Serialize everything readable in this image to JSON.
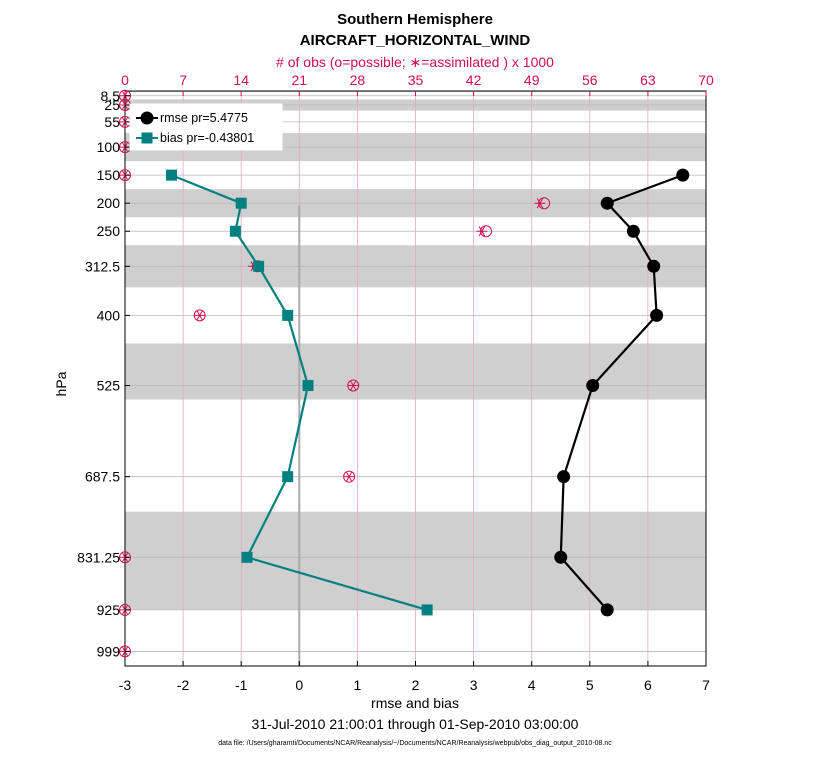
{
  "chart_data": {
    "type": "line",
    "title_line1": "Southern Hemisphere",
    "title_line2": "AIRCRAFT_HORIZONTAL_WIND",
    "top_axis_label": "# of obs (o=possible; ∗=assimilated ) x 1000",
    "xlabel": "rmse and bias",
    "ylabel": "hPa",
    "date_range": "31-Jul-2010 21:00:01 through 01-Sep-2010 03:00:00",
    "footnote": "data file: /Users/gharamti/Documents/NCAR/Reanalysis/~/Documents/NCAR/Reanalysis/webpub/obs_diag_output_2010-08.nc",
    "xlim": [
      -3,
      7
    ],
    "x_ticks": [
      "-3",
      "-2",
      "-1",
      "0",
      "1",
      "2",
      "3",
      "4",
      "5",
      "6",
      "7"
    ],
    "top_xlim": [
      0,
      70
    ],
    "top_ticks": [
      "0",
      "7",
      "14",
      "21",
      "28",
      "35",
      "42",
      "49",
      "56",
      "63",
      "70"
    ],
    "ylim": [
      0,
      1025
    ],
    "y_levels": [
      8.5,
      25,
      55,
      100,
      150,
      200,
      250,
      312.5,
      400,
      525,
      687.5,
      831.25,
      925,
      999
    ],
    "y_tick_labels": [
      "8.5",
      "25",
      "55",
      "100",
      "150",
      "200",
      "250",
      "312.5",
      "400",
      "525",
      "687.5",
      "831.25",
      "925",
      "999"
    ],
    "shaded_bands": [
      [
        0,
        2
      ],
      [
        15,
        35
      ],
      [
        75,
        125
      ],
      [
        175,
        225
      ],
      [
        275,
        350
      ],
      [
        450,
        550
      ],
      [
        750,
        925
      ],
      [
        1075,
        1125
      ],
      [
        1150,
        1225
      ]
    ],
    "legend": [
      {
        "label": "rmse pr=5.4775",
        "color": "#000000",
        "marker": "circle"
      },
      {
        "label": "bias pr=-0.43801",
        "color": "#008080",
        "marker": "square"
      }
    ],
    "series": [
      {
        "name": "rmse",
        "color": "#000000",
        "levels": [
          150,
          200,
          250,
          312.5,
          400,
          525,
          687.5,
          831.25,
          925
        ],
        "values": [
          6.6,
          5.3,
          5.75,
          6.1,
          6.15,
          5.05,
          4.55,
          4.5,
          5.3
        ]
      },
      {
        "name": "bias",
        "color": "#008080",
        "levels": [
          150,
          200,
          250,
          312.5,
          400,
          525,
          687.5,
          831.25,
          925
        ],
        "values": [
          -2.2,
          -1.0,
          -1.1,
          -0.7,
          -0.2,
          0.15,
          -0.2,
          -0.9,
          2.2
        ]
      }
    ],
    "obs_possible": {
      "levels": [
        8.5,
        25,
        55,
        100,
        150,
        200,
        250,
        312.5,
        400,
        525,
        687.5,
        831.25,
        925,
        999
      ],
      "values": [
        0,
        0,
        0,
        0,
        0,
        50.5,
        43.5,
        16,
        9,
        27.5,
        27,
        0,
        0,
        0
      ]
    },
    "obs_assimilated": {
      "levels": [
        8.5,
        25,
        55,
        100,
        150,
        200,
        250,
        312.5,
        400,
        525,
        687.5,
        831.25,
        925,
        999
      ],
      "values": [
        0,
        0,
        0,
        0,
        0,
        50,
        43,
        15.5,
        9,
        27.5,
        27,
        0,
        0,
        0
      ]
    }
  }
}
